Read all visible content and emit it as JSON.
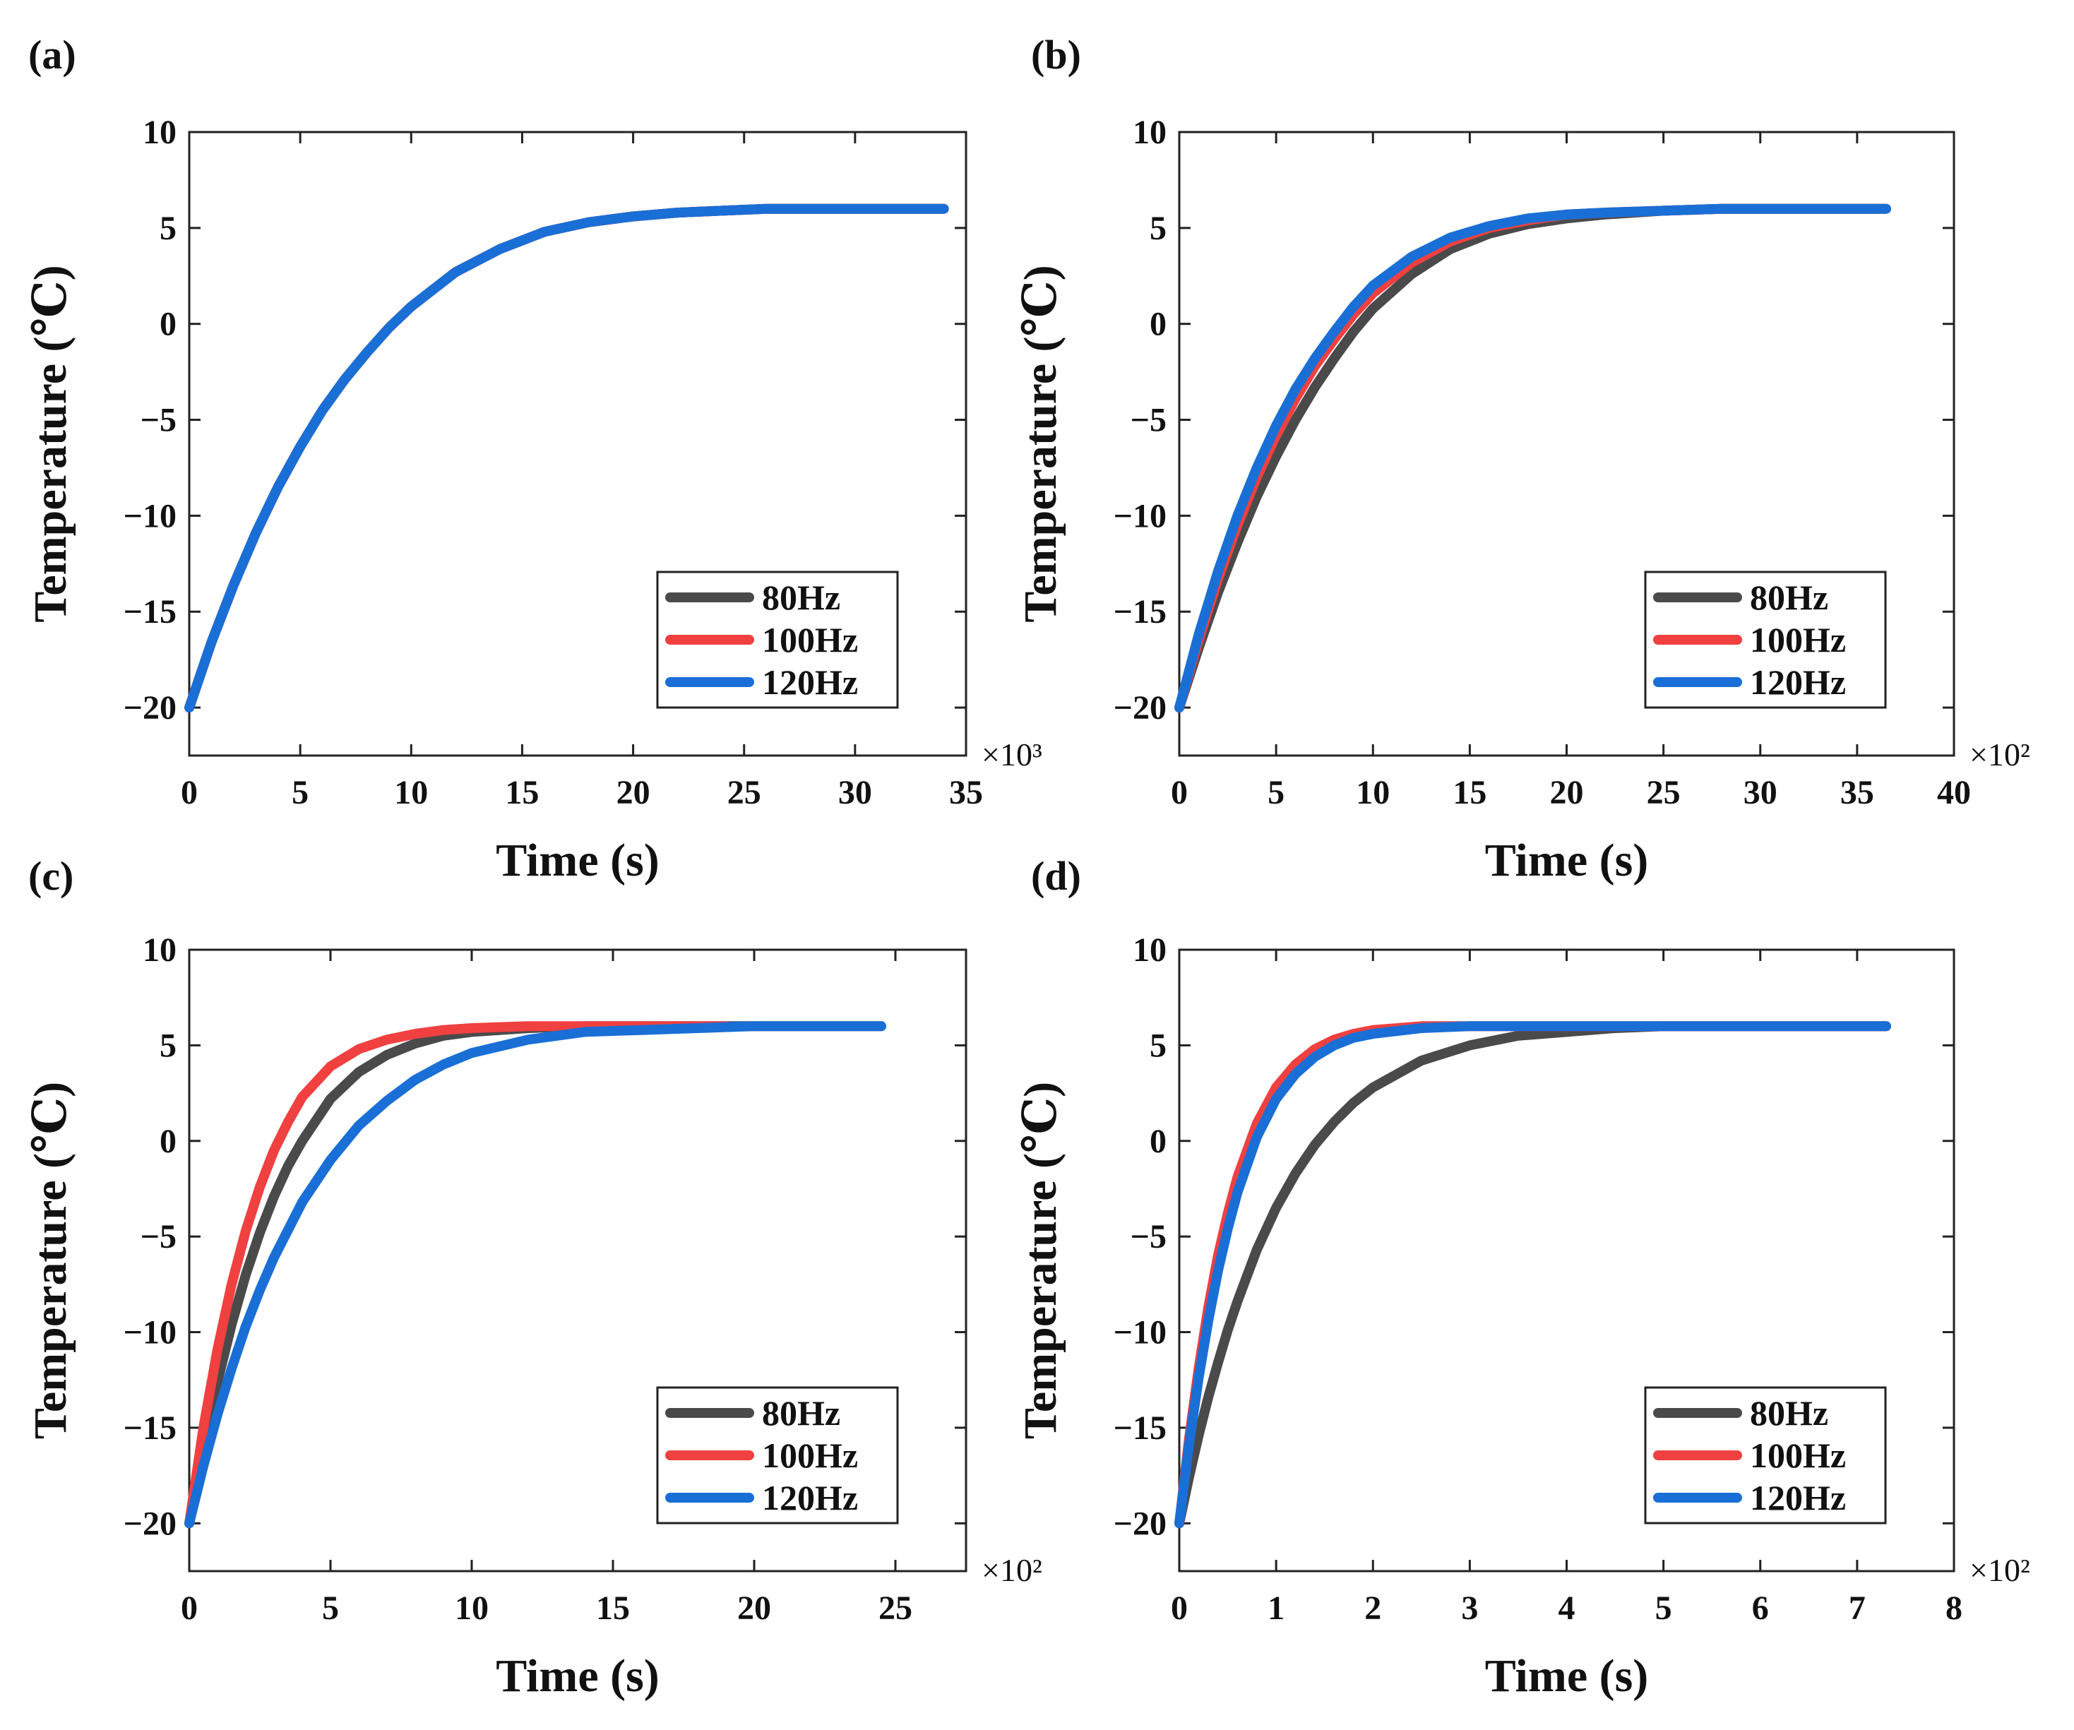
{
  "chart_data": [
    {
      "panel": "(a)",
      "type": "line",
      "xlabel": "Time (s)",
      "ylabel": "Temperature (℃)",
      "x_multiplier": "×10³",
      "xlim": [
        0,
        35
      ],
      "ylim": [
        -22.5,
        10
      ],
      "xticks": [
        0,
        5,
        10,
        15,
        20,
        25,
        30,
        35
      ],
      "yticks": [
        10,
        5,
        0,
        -5,
        -10,
        -15,
        -20
      ],
      "legend_position": "lower-right",
      "series": [
        {
          "name": "80Hz",
          "color": "#4a4a4a",
          "x": [
            0,
            1,
            2,
            3,
            4,
            5,
            6,
            7,
            8,
            9,
            10,
            12,
            14,
            16,
            18,
            20,
            22,
            24,
            26,
            28,
            30,
            32,
            34
          ],
          "y": [
            -20,
            -16.6,
            -13.6,
            -10.9,
            -8.5,
            -6.4,
            -4.5,
            -2.9,
            -1.5,
            -0.2,
            0.9,
            2.7,
            3.9,
            4.8,
            5.3,
            5.6,
            5.8,
            5.9,
            6.0,
            6.0,
            6.0,
            6.0,
            6.0
          ]
        },
        {
          "name": "100Hz",
          "color": "#f04040",
          "x": [
            0,
            1,
            2,
            3,
            4,
            5,
            6,
            7,
            8,
            9,
            10,
            12,
            14,
            16,
            18,
            20,
            22,
            24,
            26,
            28,
            30,
            32,
            34
          ],
          "y": [
            -20,
            -16.6,
            -13.6,
            -10.9,
            -8.5,
            -6.4,
            -4.5,
            -2.9,
            -1.5,
            -0.2,
            0.9,
            2.7,
            3.9,
            4.8,
            5.3,
            5.6,
            5.8,
            5.9,
            6.0,
            6.0,
            6.0,
            6.0,
            6.0
          ]
        },
        {
          "name": "120Hz",
          "color": "#1a6fd6",
          "x": [
            0,
            1,
            2,
            3,
            4,
            5,
            6,
            7,
            8,
            9,
            10,
            12,
            14,
            16,
            18,
            20,
            22,
            24,
            26,
            28,
            30,
            32,
            34
          ],
          "y": [
            -20,
            -16.6,
            -13.6,
            -10.9,
            -8.5,
            -6.4,
            -4.5,
            -2.9,
            -1.5,
            -0.2,
            0.9,
            2.7,
            3.9,
            4.8,
            5.3,
            5.6,
            5.8,
            5.9,
            6.0,
            6.0,
            6.0,
            6.0,
            6.0
          ]
        }
      ]
    },
    {
      "panel": "(b)",
      "type": "line",
      "xlabel": "Time (s)",
      "ylabel": "Temperature (℃)",
      "x_multiplier": "×10²",
      "xlim": [
        0,
        40
      ],
      "ylim": [
        -22.5,
        10
      ],
      "xticks": [
        0,
        5,
        10,
        15,
        20,
        25,
        30,
        35,
        40
      ],
      "yticks": [
        10,
        5,
        0,
        -5,
        -10,
        -15,
        -20
      ],
      "legend_position": "lower-right",
      "series": [
        {
          "name": "80Hz",
          "color": "#4a4a4a",
          "x": [
            0,
            1,
            2,
            3,
            4,
            5,
            6,
            7,
            8,
            9,
            10,
            12,
            14,
            16,
            18,
            20,
            22,
            25,
            28,
            31,
            34,
            36.5
          ],
          "y": [
            -20,
            -16.9,
            -14.0,
            -11.4,
            -9.0,
            -6.9,
            -5.0,
            -3.3,
            -1.8,
            -0.4,
            0.8,
            2.6,
            3.9,
            4.7,
            5.2,
            5.5,
            5.7,
            5.9,
            6.0,
            6.0,
            6.0,
            6.0
          ]
        },
        {
          "name": "100Hz",
          "color": "#f04040",
          "x": [
            0,
            1,
            2,
            3,
            4,
            5,
            6,
            7,
            8,
            9,
            10,
            12,
            14,
            16,
            18,
            20,
            22,
            25,
            28,
            31,
            34,
            36.5
          ],
          "y": [
            -20,
            -16.5,
            -13.3,
            -10.5,
            -8.0,
            -5.8,
            -3.9,
            -2.2,
            -0.8,
            0.5,
            1.6,
            3.2,
            4.3,
            5.0,
            5.4,
            5.7,
            5.8,
            5.9,
            6.0,
            6.0,
            6.0,
            6.0
          ]
        },
        {
          "name": "120Hz",
          "color": "#1a6fd6",
          "x": [
            0,
            1,
            2,
            3,
            4,
            5,
            6,
            7,
            8,
            9,
            10,
            12,
            14,
            16,
            18,
            20,
            22,
            25,
            28,
            31,
            34,
            36.5
          ],
          "y": [
            -20,
            -16.2,
            -12.9,
            -10.0,
            -7.5,
            -5.3,
            -3.4,
            -1.8,
            -0.4,
            0.9,
            2.0,
            3.5,
            4.5,
            5.1,
            5.5,
            5.7,
            5.8,
            5.9,
            6.0,
            6.0,
            6.0,
            6.0
          ]
        }
      ]
    },
    {
      "panel": "(c)",
      "type": "line",
      "xlabel": "Time (s)",
      "ylabel": "Temperature (℃)",
      "x_multiplier": "×10²",
      "xlim": [
        0,
        27.5
      ],
      "ylim": [
        -22.5,
        10
      ],
      "xticks": [
        0,
        5,
        10,
        15,
        20,
        25
      ],
      "yticks": [
        10,
        5,
        0,
        -5,
        -10,
        -15,
        -20
      ],
      "legend_position": "lower-right",
      "series": [
        {
          "name": "80Hz",
          "color": "#4a4a4a",
          "x": [
            0,
            0.5,
            1,
            1.5,
            2,
            2.5,
            3,
            3.5,
            4,
            5,
            6,
            7,
            8,
            9,
            10,
            12,
            14,
            16,
            18,
            20,
            22,
            24.5
          ],
          "y": [
            -20,
            -16.0,
            -12.6,
            -9.6,
            -7.0,
            -4.8,
            -2.9,
            -1.3,
            0.0,
            2.2,
            3.6,
            4.5,
            5.1,
            5.5,
            5.7,
            5.9,
            6.0,
            6.0,
            6.0,
            6.0,
            6.0,
            6.0
          ]
        },
        {
          "name": "100Hz",
          "color": "#f04040",
          "x": [
            0,
            0.5,
            1,
            1.5,
            2,
            2.5,
            3,
            3.5,
            4,
            5,
            6,
            7,
            8,
            9,
            10,
            12,
            14,
            16,
            18,
            19
          ],
          "y": [
            -20,
            -15.0,
            -10.9,
            -7.5,
            -4.7,
            -2.4,
            -0.5,
            1.0,
            2.3,
            3.9,
            4.8,
            5.3,
            5.6,
            5.8,
            5.9,
            6.0,
            6.0,
            6.0,
            6.0,
            6.0
          ]
        },
        {
          "name": "120Hz",
          "color": "#1a6fd6",
          "x": [
            0,
            0.5,
            1,
            1.5,
            2,
            2.5,
            3,
            4,
            5,
            6,
            7,
            8,
            9,
            10,
            12,
            14,
            16,
            18,
            20,
            22,
            24.5
          ],
          "y": [
            -20,
            -17.0,
            -14.3,
            -11.9,
            -9.7,
            -7.8,
            -6.1,
            -3.2,
            -1.0,
            0.8,
            2.1,
            3.2,
            4.0,
            4.6,
            5.3,
            5.7,
            5.8,
            5.9,
            6.0,
            6.0,
            6.0
          ]
        }
      ]
    },
    {
      "panel": "(d)",
      "type": "line",
      "xlabel": "Time (s)",
      "ylabel": "Temperature (℃)",
      "x_multiplier": "×10²",
      "xlim": [
        0,
        8
      ],
      "ylim": [
        -22.5,
        10
      ],
      "xticks": [
        0,
        1,
        2,
        3,
        4,
        5,
        6,
        7,
        8
      ],
      "yticks": [
        10,
        5,
        0,
        -5,
        -10,
        -15,
        -20
      ],
      "legend_position": "lower-right",
      "series": [
        {
          "name": "80Hz",
          "color": "#4a4a4a",
          "x": [
            0,
            0.1,
            0.2,
            0.3,
            0.4,
            0.5,
            0.6,
            0.8,
            1.0,
            1.2,
            1.4,
            1.6,
            1.8,
            2.0,
            2.5,
            3.0,
            3.5,
            4.0,
            4.5,
            5.0,
            5.5,
            6.0,
            6.5,
            7.0,
            7.3
          ],
          "y": [
            -20,
            -17.6,
            -15.4,
            -13.4,
            -11.6,
            -9.9,
            -8.4,
            -5.7,
            -3.5,
            -1.7,
            -0.2,
            1.0,
            2.0,
            2.8,
            4.2,
            5.0,
            5.5,
            5.7,
            5.9,
            6.0,
            6.0,
            6.0,
            6.0,
            6.0,
            6.0
          ]
        },
        {
          "name": "100Hz",
          "color": "#f04040",
          "x": [
            0,
            0.1,
            0.2,
            0.3,
            0.4,
            0.5,
            0.6,
            0.8,
            1.0,
            1.2,
            1.4,
            1.6,
            1.8,
            2.0,
            2.5,
            3.0,
            3.5,
            4.0,
            4.5,
            5.0,
            5.5,
            6.0,
            6.5,
            7.0,
            7.3
          ],
          "y": [
            -20,
            -15.6,
            -11.9,
            -8.7,
            -6.0,
            -3.8,
            -1.9,
            0.9,
            2.8,
            4.0,
            4.8,
            5.3,
            5.6,
            5.8,
            6.0,
            6.0,
            6.0,
            6.0,
            6.0,
            6.0,
            6.0,
            6.0,
            6.0,
            6.0,
            6.0
          ]
        },
        {
          "name": "120Hz",
          "color": "#1a6fd6",
          "x": [
            0,
            0.1,
            0.2,
            0.3,
            0.4,
            0.5,
            0.6,
            0.8,
            1.0,
            1.2,
            1.4,
            1.6,
            1.8,
            2.0,
            2.5,
            3.0,
            3.5,
            4.0,
            4.5,
            5.0,
            5.5,
            6.0,
            6.5,
            7.0,
            7.3
          ],
          "y": [
            -20,
            -15.9,
            -12.4,
            -9.4,
            -6.8,
            -4.6,
            -2.7,
            0.2,
            2.2,
            3.5,
            4.4,
            5.0,
            5.4,
            5.6,
            5.9,
            6.0,
            6.0,
            6.0,
            6.0,
            6.0,
            6.0,
            6.0,
            6.0,
            6.0,
            6.0
          ]
        }
      ]
    }
  ]
}
